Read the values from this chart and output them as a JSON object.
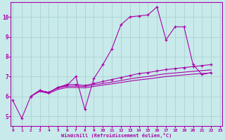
{
  "bg_color": "#c8eaea",
  "grid_color": "#a8cccc",
  "line_color": "#aa00aa",
  "xlim": [
    -0.2,
    23.2
  ],
  "ylim": [
    4.5,
    10.75
  ],
  "yticks": [
    5,
    6,
    7,
    8,
    9,
    10
  ],
  "xticks": [
    0,
    1,
    2,
    3,
    4,
    5,
    6,
    7,
    8,
    9,
    10,
    11,
    12,
    13,
    14,
    15,
    16,
    17,
    18,
    19,
    20,
    21,
    22,
    23
  ],
  "xlabel": "Windchill (Refroidissement éolien,°C)",
  "s1_x": [
    0,
    1,
    2,
    3,
    4,
    5,
    6,
    7,
    8,
    9,
    10,
    11,
    12,
    13,
    14,
    15,
    16,
    17,
    18,
    19,
    20,
    21,
    22
  ],
  "s1_y": [
    5.8,
    4.9,
    6.0,
    6.3,
    6.2,
    6.45,
    6.55,
    7.0,
    5.35,
    6.9,
    7.6,
    8.4,
    9.6,
    10.0,
    10.05,
    10.1,
    10.5,
    8.85,
    9.5,
    9.5,
    7.6,
    7.1,
    7.2
  ],
  "s2_x": [
    2,
    3,
    4,
    5,
    6,
    7,
    8,
    9,
    10,
    11,
    12,
    13,
    14,
    15,
    16,
    17,
    18,
    19,
    20,
    21,
    22
  ],
  "s2_y": [
    6.0,
    6.3,
    6.2,
    6.45,
    6.6,
    6.6,
    6.55,
    6.65,
    6.75,
    6.85,
    6.95,
    7.05,
    7.15,
    7.2,
    7.28,
    7.35,
    7.4,
    7.45,
    7.5,
    7.55,
    7.6
  ],
  "s3_x": [
    2,
    3,
    4,
    5,
    6,
    7,
    8,
    9,
    10,
    11,
    12,
    13,
    14,
    15,
    16,
    17,
    18,
    19,
    20,
    21,
    22
  ],
  "s3_y": [
    6.0,
    6.3,
    6.2,
    6.42,
    6.52,
    6.52,
    6.5,
    6.58,
    6.65,
    6.72,
    6.8,
    6.88,
    6.95,
    7.0,
    7.08,
    7.14,
    7.18,
    7.22,
    7.26,
    7.3,
    7.33
  ],
  "s4_x": [
    2,
    3,
    4,
    5,
    6,
    7,
    8,
    9,
    10,
    11,
    12,
    13,
    14,
    15,
    16,
    17,
    18,
    19,
    20,
    21,
    22
  ],
  "s4_y": [
    6.0,
    6.25,
    6.15,
    6.35,
    6.45,
    6.45,
    6.43,
    6.5,
    6.57,
    6.63,
    6.7,
    6.77,
    6.83,
    6.88,
    6.94,
    7.0,
    7.04,
    7.08,
    7.12,
    7.15,
    7.18
  ]
}
